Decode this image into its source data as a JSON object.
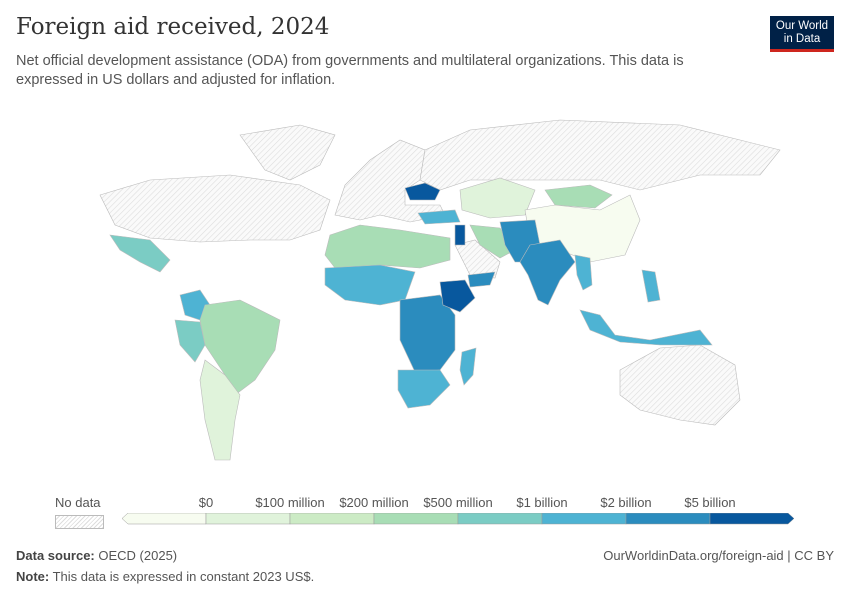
{
  "header": {
    "title": "Foreign aid received, 2024",
    "subtitle": "Net official development assistance (ODA) from governments and multilateral organizations. This data is expressed in US dollars and adjusted for inflation."
  },
  "logo": {
    "line1": "Our World",
    "line2": "in Data"
  },
  "legend": {
    "no_data_label": "No data",
    "bins": [
      {
        "label": "$0",
        "color": "#f7fcf0"
      },
      {
        "label": "$100 million",
        "color": "#e0f3db"
      },
      {
        "label": "$200 million",
        "color": "#ccebc5"
      },
      {
        "label": "$500 million",
        "color": "#a8ddb5"
      },
      {
        "label": "$1 billion",
        "color": "#7bccc4"
      },
      {
        "label": "$2 billion",
        "color": "#4eb3d3"
      },
      {
        "label": "$5 billion",
        "color": "#2b8cbe"
      },
      {
        "label": "",
        "color": "#08589e"
      }
    ]
  },
  "map": {
    "no_data_color": "#eeeeee",
    "regions": [
      {
        "name": "North America",
        "bin": -1
      },
      {
        "name": "Greenland",
        "bin": -1
      },
      {
        "name": "Europe",
        "bin": -1
      },
      {
        "name": "Russia",
        "bin": -1
      },
      {
        "name": "Australia",
        "bin": -1
      },
      {
        "name": "Saudi Arabia",
        "bin": -1
      },
      {
        "name": "Mexico",
        "bin": 4
      },
      {
        "name": "Colombia",
        "bin": 5
      },
      {
        "name": "Brazil",
        "bin": 3
      },
      {
        "name": "Peru",
        "bin": 4
      },
      {
        "name": "Argentina",
        "bin": 1
      },
      {
        "name": "Ukraine",
        "bin": 7
      },
      {
        "name": "Kazakhstan",
        "bin": 1
      },
      {
        "name": "Mongolia",
        "bin": 3
      },
      {
        "name": "China",
        "bin": 0
      },
      {
        "name": "Turkey",
        "bin": 5
      },
      {
        "name": "Syria",
        "bin": 7
      },
      {
        "name": "Yemen",
        "bin": 6
      },
      {
        "name": "Iran",
        "bin": 3
      },
      {
        "name": "Afghanistan",
        "bin": 6
      },
      {
        "name": "India",
        "bin": 6
      },
      {
        "name": "Myanmar",
        "bin": 5
      },
      {
        "name": "North Africa",
        "bin": 3
      },
      {
        "name": "West Africa",
        "bin": 5
      },
      {
        "name": "Central Africa",
        "bin": 6
      },
      {
        "name": "Ethiopia",
        "bin": 7
      },
      {
        "name": "Southern Africa",
        "bin": 5
      },
      {
        "name": "Madagascar",
        "bin": 5
      },
      {
        "name": "Indonesia",
        "bin": 5
      },
      {
        "name": "Philippines",
        "bin": 5
      }
    ]
  },
  "footer": {
    "source_label": "Data source:",
    "source": "OECD (2025)",
    "note_label": "Note:",
    "note": "This data is expressed in constant 2023 US$.",
    "url": "OurWorldinData.org/foreign-aid | CC BY"
  }
}
